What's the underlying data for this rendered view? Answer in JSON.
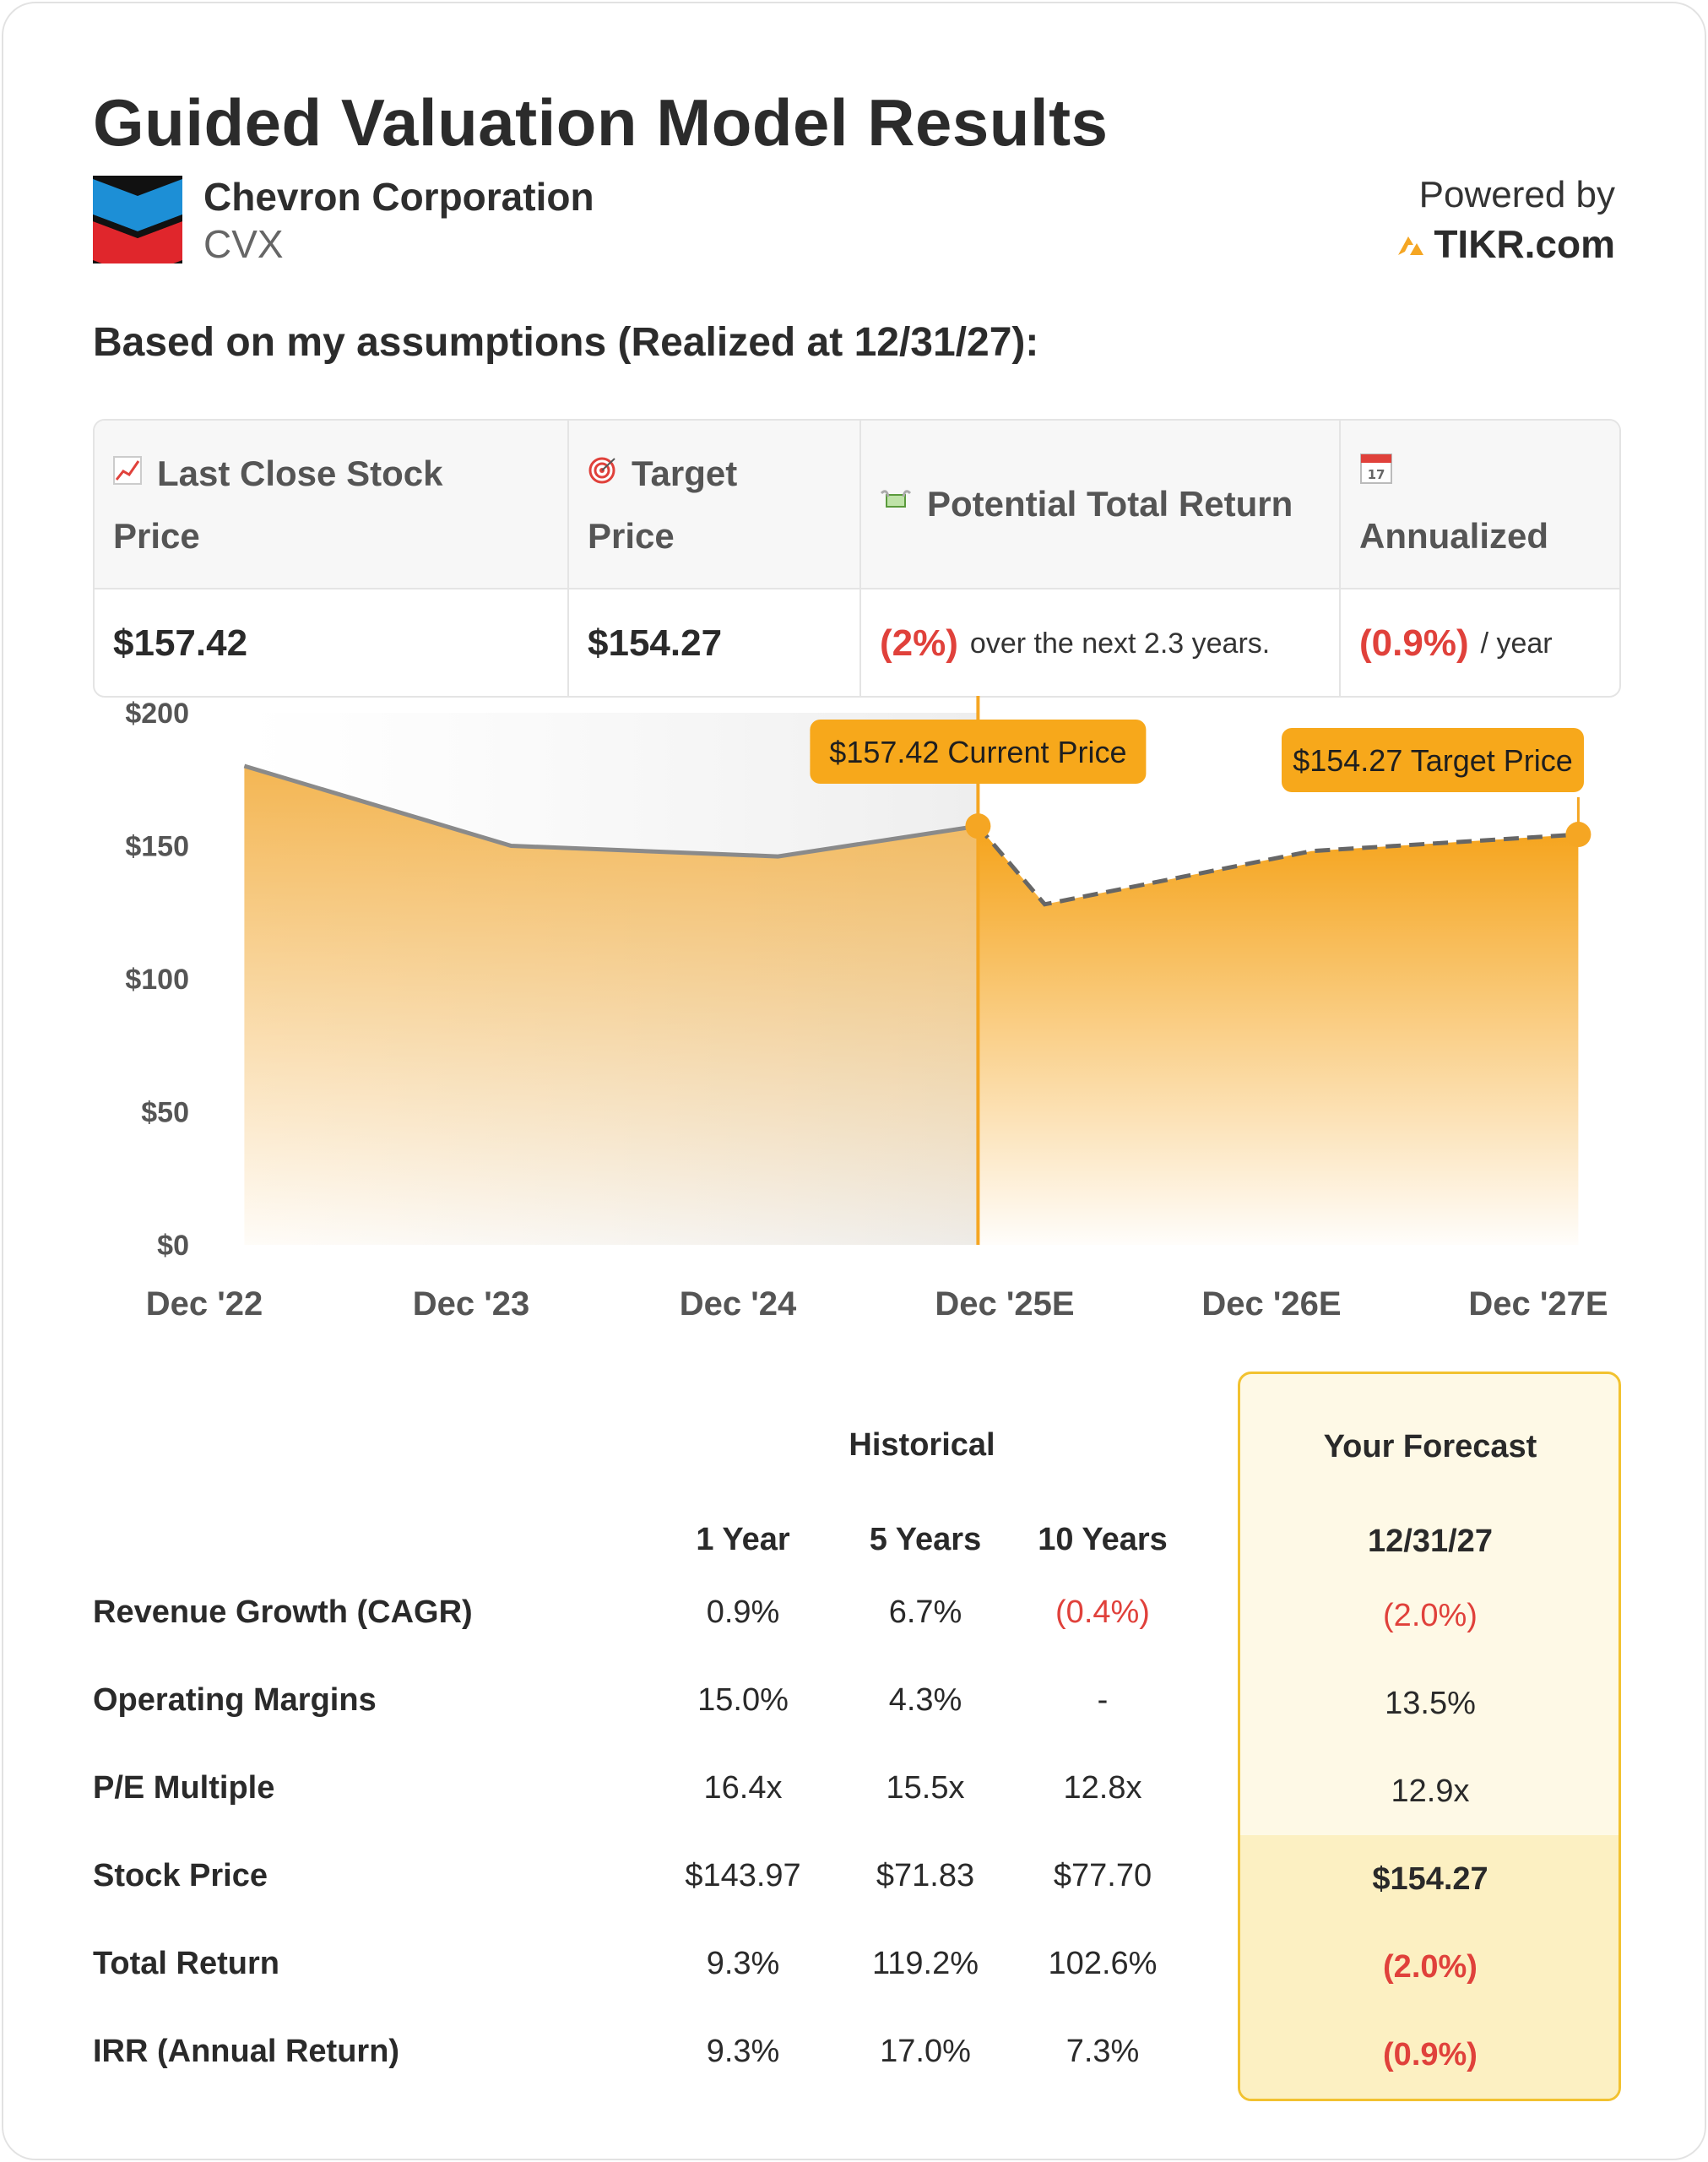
{
  "header": {
    "title": "Guided Valuation Model Results",
    "company": "Chevron Corporation",
    "ticker": "CVX",
    "powered_by": "Powered by",
    "brand": "TIKR.com"
  },
  "assumption_text": "Based on my assumptions (Realized at 12/31/27):",
  "summary": {
    "last_close_label_1": "Last Close Stock",
    "last_close_label_2": "Price",
    "target_label_1": "Target",
    "target_label_2": "Price",
    "total_return_label": "Potential Total Return",
    "annualized_label": "Annualized",
    "last_close_value": "$157.42",
    "target_value": "$154.27",
    "total_return_value": "(2%)",
    "total_return_suffix": "over the next 2.3 years.",
    "annualized_value": "(0.9%)",
    "annualized_suffix": "/ year",
    "icons": [
      "chart-increasing-icon",
      "target-icon",
      "money-wings-icon",
      "calendar-icon"
    ]
  },
  "chart_data": {
    "type": "area",
    "categories": [
      "Dec '22",
      "Dec '23",
      "Dec '24",
      "Dec '25E",
      "Dec '26E",
      "Dec '27E"
    ],
    "y_ticks": [
      "$200",
      "$150",
      "$100",
      "$50",
      "$0"
    ],
    "ylim": [
      0,
      200
    ],
    "historical": [
      {
        "x": 0.15,
        "y": 180
      },
      {
        "x": 1.15,
        "y": 150
      },
      {
        "x": 2.15,
        "y": 146
      },
      {
        "x": 2.9,
        "y": 157.42
      }
    ],
    "forecast": [
      {
        "x": 2.9,
        "y": 157.42
      },
      {
        "x": 3.15,
        "y": 128
      },
      {
        "x": 4.15,
        "y": 148
      },
      {
        "x": 5.15,
        "y": 154.27
      }
    ],
    "current_price_label": "$157.42 Current Price",
    "target_price_label": "$154.27 Target Price",
    "colors": {
      "accent": "#f5a623",
      "line": "#8a8a8a",
      "tag": "#f7a81b"
    }
  },
  "metrics": {
    "historical_header": "Historical",
    "forecast_header": "Your Forecast",
    "col_headers": [
      "1 Year",
      "5 Years",
      "10 Years"
    ],
    "forecast_date": "12/31/27",
    "rows": [
      {
        "label": "Revenue Growth (CAGR)",
        "values": [
          "0.9%",
          "6.7%",
          "(0.4%)"
        ],
        "forecast": "(2.0%)"
      },
      {
        "label": "Operating Margins",
        "values": [
          "15.0%",
          "4.3%",
          "-"
        ],
        "forecast": "13.5%"
      },
      {
        "label": "P/E Multiple",
        "values": [
          "16.4x",
          "15.5x",
          "12.8x"
        ],
        "forecast": "12.9x"
      },
      {
        "label": "Stock Price",
        "values": [
          "$143.97",
          "$71.83",
          "$77.70"
        ],
        "forecast": "$154.27"
      },
      {
        "label": "Total Return",
        "values": [
          "9.3%",
          "119.2%",
          "102.6%"
        ],
        "forecast": "(2.0%)"
      },
      {
        "label": "IRR (Annual Return)",
        "values": [
          "9.3%",
          "17.0%",
          "7.3%"
        ],
        "forecast": "(0.9%)"
      }
    ]
  }
}
